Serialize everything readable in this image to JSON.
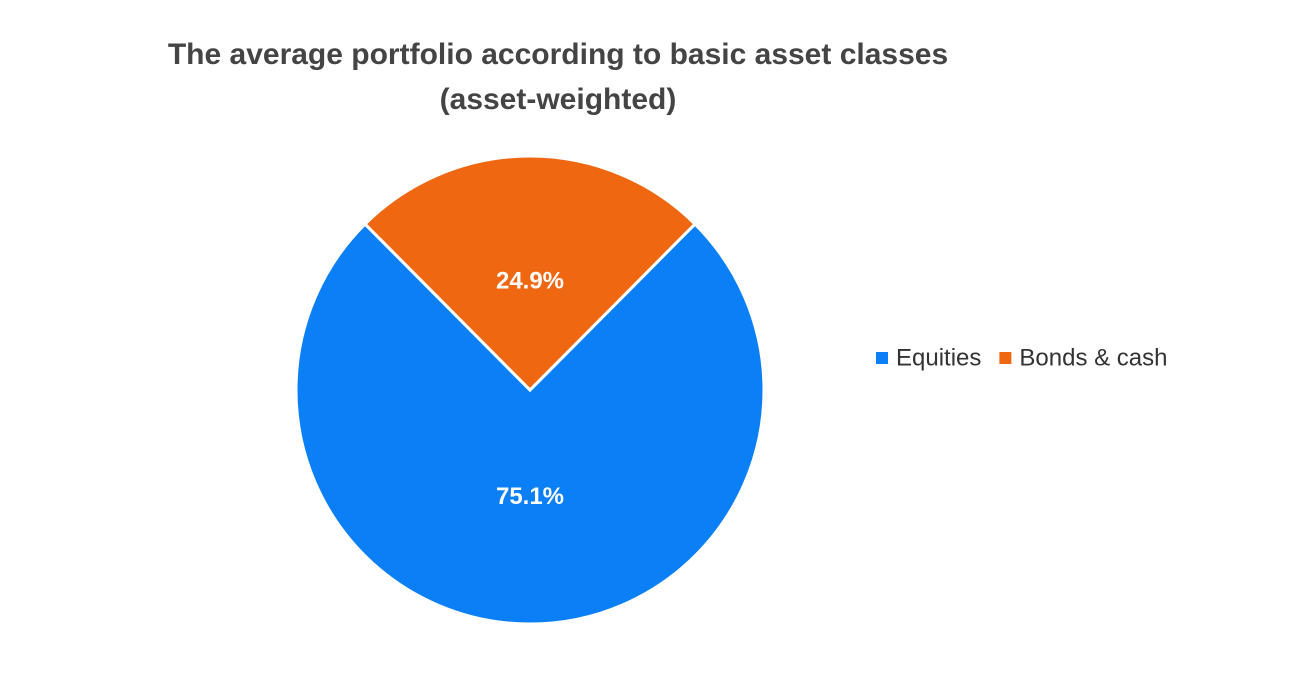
{
  "chart_data": {
    "type": "pie",
    "title": "The average portfolio according to basic asset classes (asset-weighted)",
    "categories": [
      "Equities",
      "Bonds & cash"
    ],
    "values": [
      75.1,
      24.9
    ],
    "value_labels": [
      "75.1%",
      "24.9%"
    ],
    "colors": [
      "#0a7ff6",
      "#ef6811"
    ],
    "legend": "right"
  }
}
